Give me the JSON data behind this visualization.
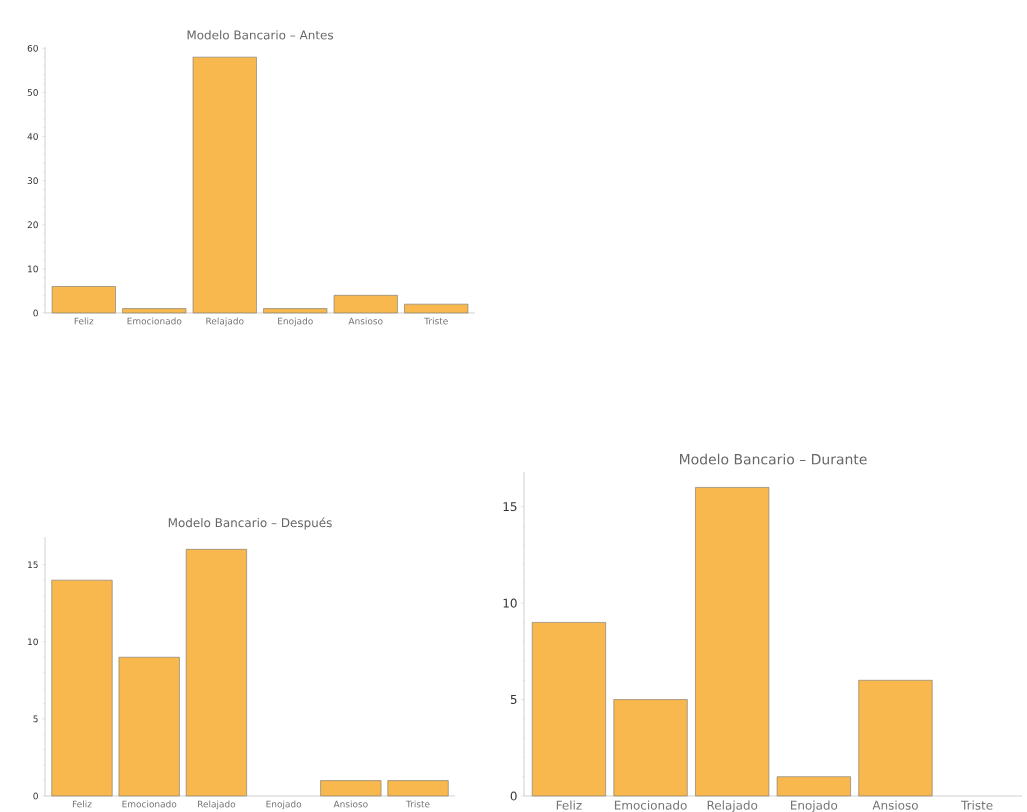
{
  "chart_data": [
    {
      "type": "bar",
      "title": "Modelo Bancario – Antes",
      "categories": [
        "Feliz",
        "Emocionado",
        "Relajado",
        "Enojado",
        "Ansioso",
        "Triste"
      ],
      "values": [
        6,
        1,
        58,
        1,
        4,
        2
      ],
      "color": "#f8b84e",
      "ylim": [
        0,
        60.3
      ],
      "yticks": [
        0,
        10,
        20,
        30,
        40,
        50,
        60
      ]
    },
    {
      "type": "bar",
      "title": "Modelo Bancario – Después",
      "categories": [
        "Feliz",
        "Emocionado",
        "Relajado",
        "Enojado",
        "Ansioso",
        "Triste"
      ],
      "values": [
        14,
        9,
        16,
        0,
        1,
        1
      ],
      "color": "#f8b84e",
      "ylim": [
        0,
        16.8
      ],
      "yticks": [
        0,
        5,
        10,
        15
      ]
    },
    {
      "type": "bar",
      "title": "Modelo Bancario – Durante",
      "categories": [
        "Feliz",
        "Emocionado",
        "Relajado",
        "Enojado",
        "Ansioso",
        "Triste"
      ],
      "values": [
        9,
        5,
        16,
        1,
        6,
        0
      ],
      "color": "#f8b84e",
      "ylim": [
        0,
        16.8
      ],
      "yticks": [
        0,
        5,
        10,
        15
      ]
    }
  ]
}
